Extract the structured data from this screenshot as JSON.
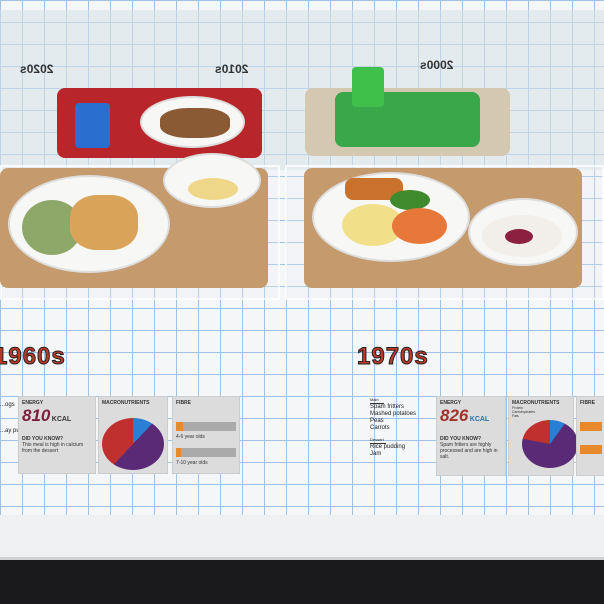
{
  "back_labels": [
    "2020s",
    "2010s",
    "2000s"
  ],
  "front": [
    {
      "decade": "1960s",
      "energy_title": "ENERGY",
      "kcal": "810",
      "kcal_unit": "KCAL",
      "macro_title": "MACRONUTRIENTS",
      "fibre_title": "FIBRE",
      "did_you_know_title": "DID YOU KNOW?",
      "did_you_know": "This meal is high in calcium from the dessert",
      "menu_partial": [
        "...ogs",
        "...ay pudding"
      ],
      "fibre_rows": [
        "4-6 year olds",
        "7-10 year olds"
      ],
      "pie": {
        "protein": 0.12,
        "carbohydrates": 0.38,
        "fats": 0.5
      }
    },
    {
      "decade": "1970s",
      "energy_title": "ENERGY",
      "kcal": "826",
      "kcal_unit": "KCAL",
      "macro_title": "MACRONUTRIENTS",
      "fibre_title": "FIBRE",
      "did_you_know_title": "DID YOU KNOW?",
      "did_you_know": "Spam fritters are highly processed and are high in salt.",
      "main_label": "Main",
      "menu": [
        "Spam fritters",
        "Mashed potatoes",
        "Peas",
        "Carrots"
      ],
      "dessert_label": "Dessert",
      "dessert": [
        "Rice pudding",
        "Jam"
      ],
      "legend": [
        "Protein",
        "Carbohydrates",
        "Fats"
      ],
      "pie": {
        "protein": 0.1,
        "carbohydrates": 0.22,
        "fats": 0.68
      }
    }
  ],
  "colors": {
    "protein": "#2a7fd4",
    "carbohydrates": "#c0302e",
    "fats": "#5b2a76",
    "fibre": "#e8892c",
    "grid": "#9fc3e6"
  }
}
